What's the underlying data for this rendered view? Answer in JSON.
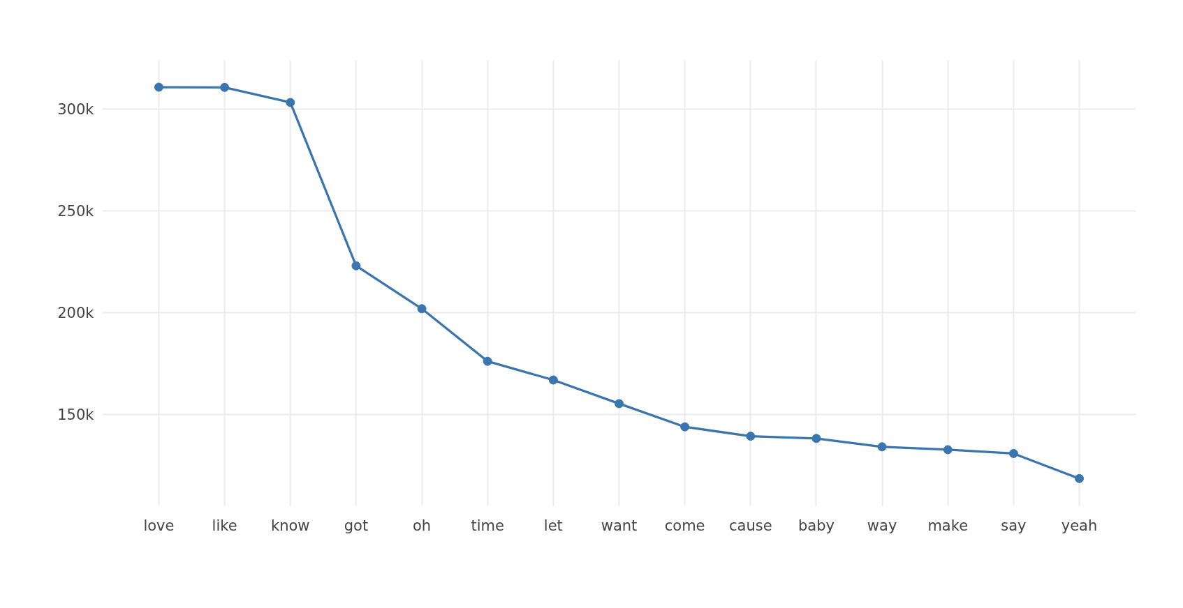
{
  "chart_data": {
    "type": "line",
    "categories": [
      "love",
      "like",
      "know",
      "got",
      "oh",
      "time",
      "let",
      "want",
      "come",
      "cause",
      "baby",
      "way",
      "make",
      "say",
      "yeah"
    ],
    "values": [
      310900,
      310800,
      303400,
      223200,
      202100,
      176300,
      167100,
      155500,
      144100,
      139500,
      138400,
      134300,
      132900,
      131000,
      118700
    ],
    "color": "#3a75ae",
    "ylim": [
      105300,
      324100
    ],
    "yticks": [
      {
        "value": 150000,
        "label": "150k"
      },
      {
        "value": 200000,
        "label": "200k"
      },
      {
        "value": 250000,
        "label": "250k"
      },
      {
        "value": 300000,
        "label": "300k"
      }
    ],
    "grid": true,
    "marker": "circle",
    "line_style": "solid"
  }
}
